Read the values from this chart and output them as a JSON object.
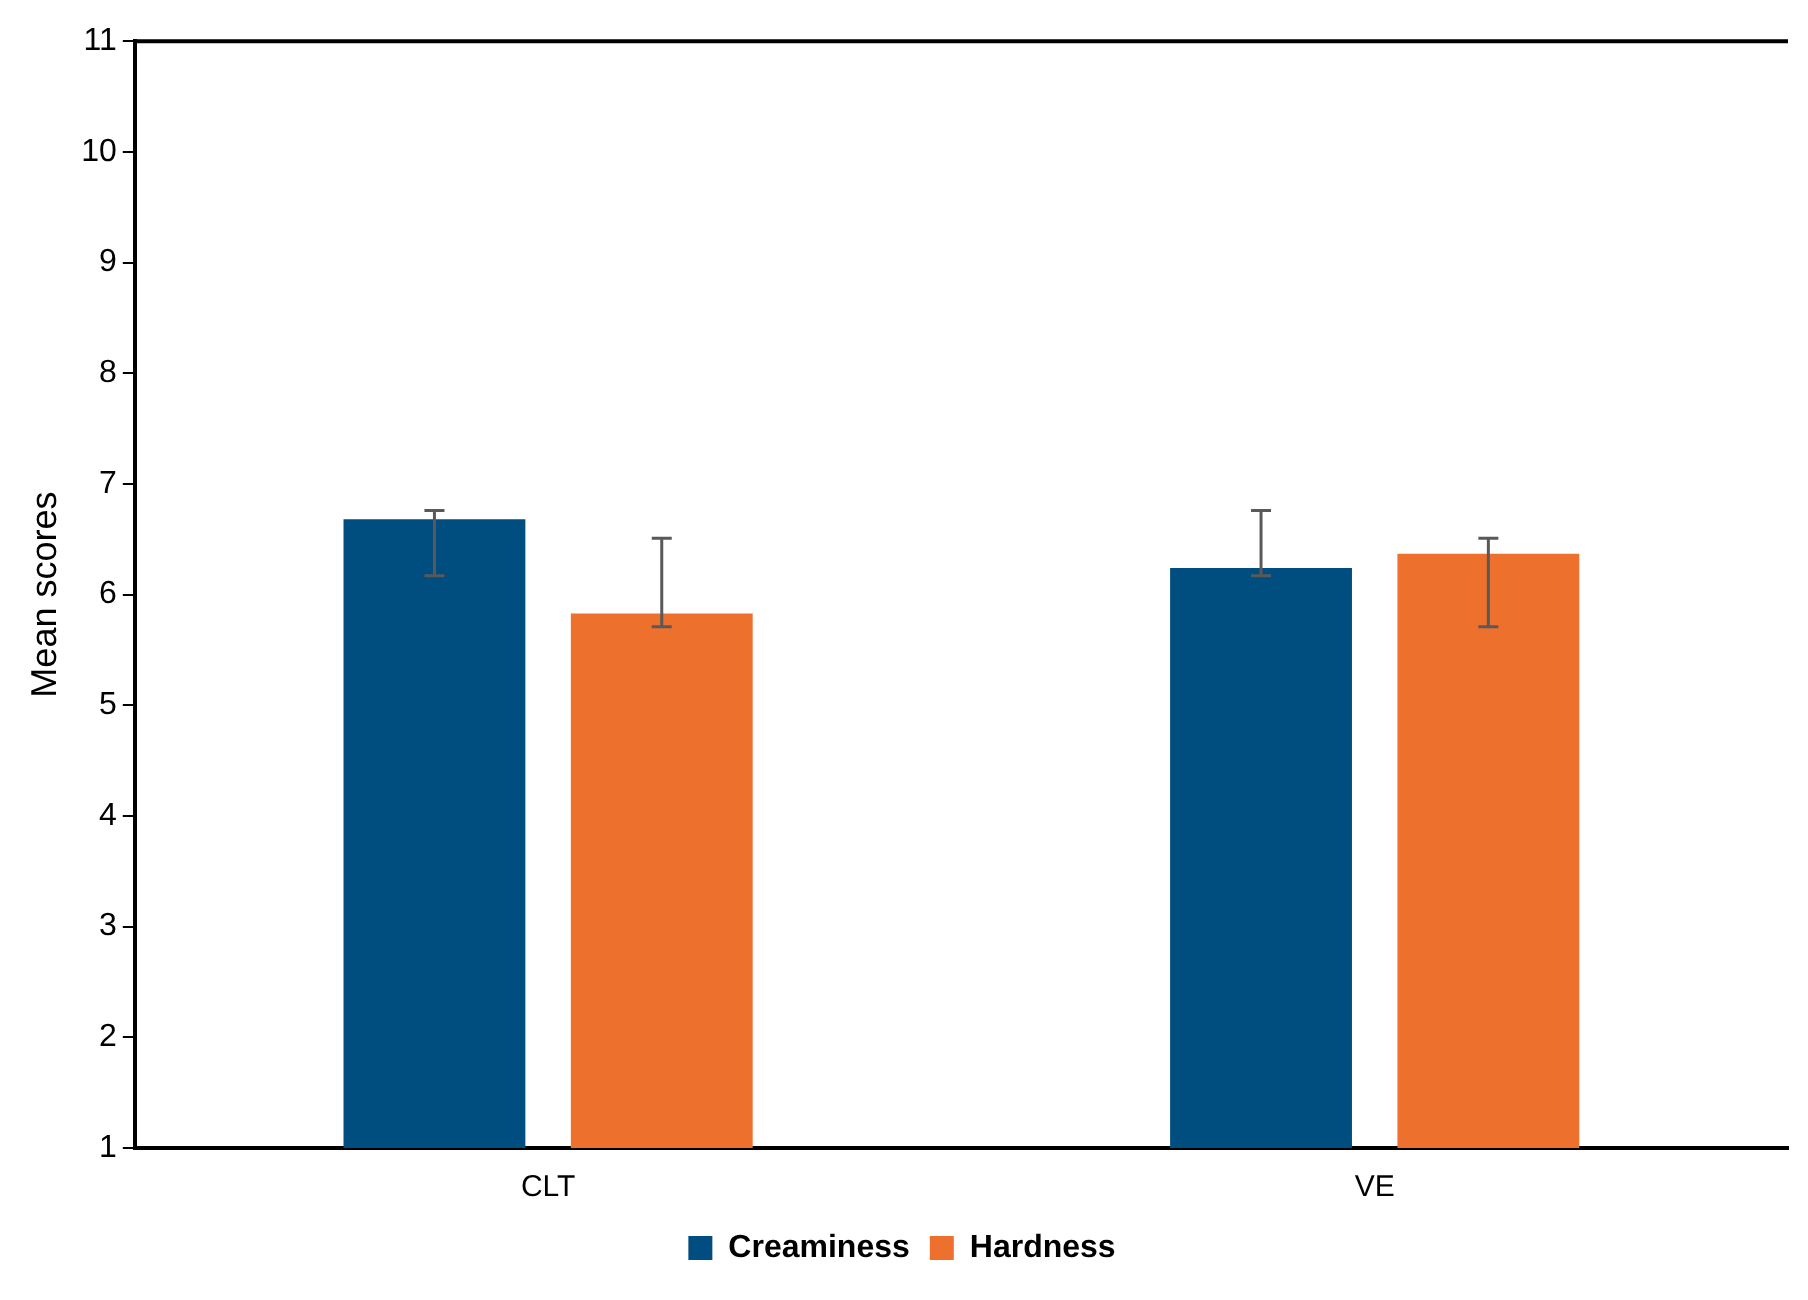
{
  "chart_data": {
    "type": "bar",
    "ylabel": "Mean scores",
    "categories": [
      "CLT",
      "VE"
    ],
    "series": [
      {
        "name": "Creaminess",
        "color": "#004d80",
        "values": [
          6.68,
          6.24
        ],
        "errors": [
          [
            6.17,
            6.76
          ],
          [
            6.17,
            6.76
          ]
        ]
      },
      {
        "name": "Hardness",
        "color": "#ed702d",
        "values": [
          5.83,
          6.37
        ],
        "errors": [
          [
            5.71,
            6.51
          ],
          [
            5.71,
            6.51
          ]
        ]
      }
    ],
    "ylim": [
      1,
      11
    ],
    "yticks": [
      1,
      2,
      3,
      4,
      5,
      6,
      7,
      8,
      9,
      10,
      11
    ],
    "grid": false,
    "legend": "bottom"
  }
}
